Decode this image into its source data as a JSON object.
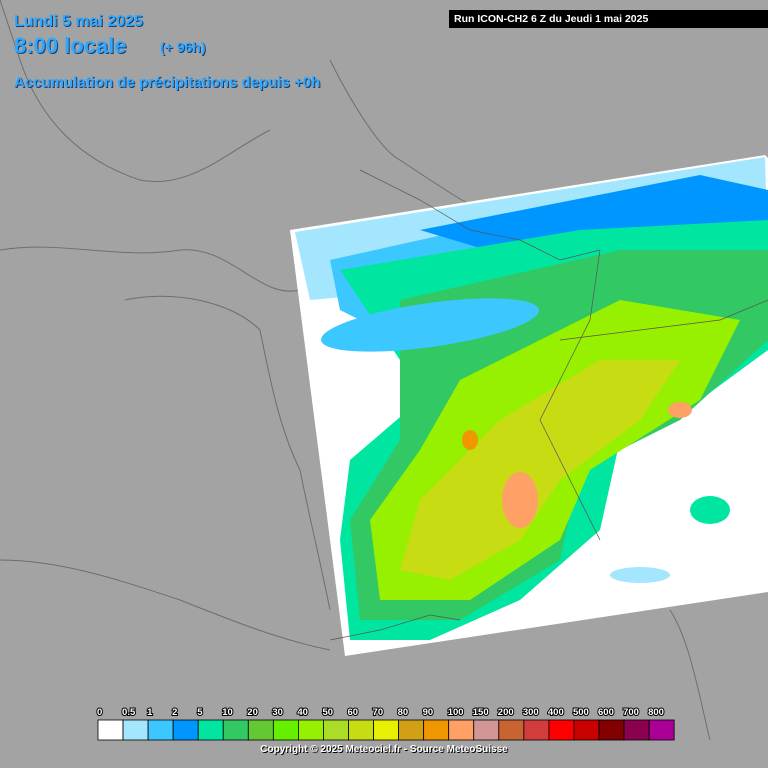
{
  "header": {
    "date": "Lundi 5 mai 2025",
    "time": "8:00 locale",
    "offset": "(+ 96h)",
    "subtitle": "Accumulation de précipitations depuis +0h"
  },
  "run": "Run ICON-CH2 6 Z du Jeudi 1 mai 2025",
  "legend": {
    "items": [
      {
        "label": "0",
        "color": "#ffffff"
      },
      {
        "label": "0.5",
        "color": "#a5e6ff"
      },
      {
        "label": "1",
        "color": "#3cc8ff"
      },
      {
        "label": "2",
        "color": "#0096ff"
      },
      {
        "label": "5",
        "color": "#00e6a0"
      },
      {
        "label": "10",
        "color": "#32c864"
      },
      {
        "label": "20",
        "color": "#64c832"
      },
      {
        "label": "30",
        "color": "#64f000"
      },
      {
        "label": "40",
        "color": "#96f000"
      },
      {
        "label": "50",
        "color": "#aadc28"
      },
      {
        "label": "60",
        "color": "#c8dc14"
      },
      {
        "label": "70",
        "color": "#e6f000"
      },
      {
        "label": "80",
        "color": "#d2a014"
      },
      {
        "label": "90",
        "color": "#f09600"
      },
      {
        "label": "100",
        "color": "#ffa064"
      },
      {
        "label": "150",
        "color": "#d29696"
      },
      {
        "label": "200",
        "color": "#c86432"
      },
      {
        "label": "300",
        "color": "#d23c3c"
      },
      {
        "label": "400",
        "color": "#ff0000"
      },
      {
        "label": "500",
        "color": "#c80000"
      },
      {
        "label": "600",
        "color": "#820000"
      },
      {
        "label": "700",
        "color": "#8c0050"
      },
      {
        "label": "800",
        "color": "#aa0096"
      }
    ]
  },
  "footer": "Copyright © 2025 Meteociel.fr - Source MeteoSuisse"
}
